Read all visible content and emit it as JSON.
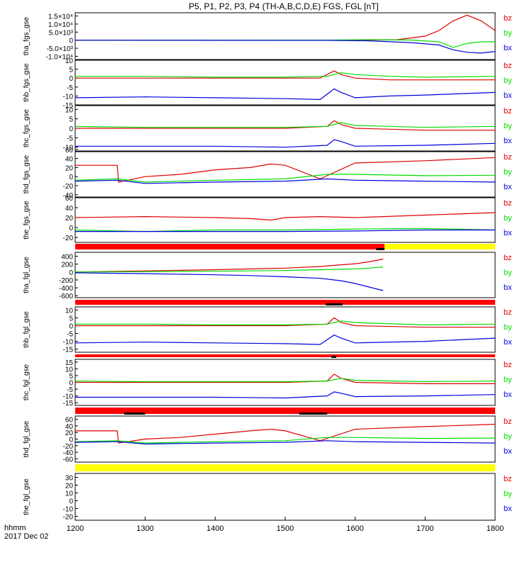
{
  "title": "P5, P1, P2, P3, P4 (TH-A,B,C,D,E) FGS, FGL [nT]",
  "footer": {
    "hhmm": "hhmm",
    "date": "2017 Dec 02"
  },
  "colors": {
    "bz": "#dd0000",
    "by": "#00dd00",
    "bx": "#0000dd",
    "flag_red": "#ff0000",
    "flag_yellow": "#ffff00",
    "flag_black": "#000000"
  },
  "chart_data": {
    "type": "line",
    "x_axis": {
      "range": [
        1200,
        1800
      ],
      "tick_labels": [
        "1200",
        "1300",
        "1400",
        "1500",
        "1600",
        "1700",
        "1800"
      ]
    },
    "legend": [
      "bz",
      "by",
      "bx"
    ],
    "panels": [
      {
        "id": "tha_fgs",
        "ylabel": "tha_fgs_gse",
        "ylim": [
          -12000,
          17000
        ],
        "tick_labels": [
          "1.5×10⁴",
          "1.0×10⁴",
          "5.0×10³",
          "0",
          "-5.0×10³",
          "-1.0×10⁴"
        ],
        "tick_values": [
          15000,
          10000,
          5000,
          0,
          -5000,
          -10000
        ],
        "series": [
          {
            "name": "bz",
            "x": [
              1200,
              1600,
              1660,
              1700,
              1720,
              1740,
              1760,
              1780,
              1800
            ],
            "y": [
              0,
              0,
              300,
              2500,
              6000,
              12000,
              15500,
              12000,
              6000
            ]
          },
          {
            "name": "by",
            "x": [
              1200,
              1560,
              1620,
              1680,
              1720,
              1740,
              1760,
              1780,
              1800
            ],
            "y": [
              0,
              50,
              300,
              100,
              -1000,
              -4500,
              -2000,
              -1000,
              -1000
            ]
          },
          {
            "name": "bx",
            "x": [
              1200,
              1560,
              1620,
              1680,
              1720,
              1740,
              1760,
              1780,
              1800
            ],
            "y": [
              0,
              -100,
              -400,
              -1500,
              -3000,
              -6000,
              -7500,
              -8000,
              -7000
            ]
          }
        ]
      },
      {
        "id": "thb_fgs",
        "ylabel": "thb_fgs_gse",
        "ylim": [
          -15,
          10
        ],
        "tick_labels": [
          "10",
          "5",
          "0",
          "-5",
          "-10",
          "-15"
        ],
        "tick_values": [
          10,
          5,
          0,
          -5,
          -10,
          -15
        ],
        "series": [
          {
            "name": "bz",
            "x": [
              1200,
              1300,
              1400,
              1500,
              1550,
              1570,
              1580,
              1600,
              1650,
              1700,
              1800
            ],
            "y": [
              0,
              0,
              0,
              0,
              0,
              4,
              2,
              0,
              -1,
              -1,
              -1
            ]
          },
          {
            "name": "by",
            "x": [
              1200,
              1300,
              1400,
              1500,
              1560,
              1580,
              1600,
              1650,
              1700,
              1800
            ],
            "y": [
              1,
              1,
              0.5,
              0.5,
              1,
              3,
              2,
              1,
              0.5,
              1
            ]
          },
          {
            "name": "bx",
            "x": [
              1200,
              1300,
              1400,
              1500,
              1550,
              1560,
              1570,
              1580,
              1600,
              1650,
              1700,
              1800
            ],
            "y": [
              -11,
              -10.5,
              -11,
              -11.5,
              -12,
              -9,
              -6,
              -8,
              -11,
              -10,
              -9.5,
              -8
            ]
          }
        ]
      },
      {
        "id": "thc_fgs",
        "ylabel": "thc_fgs_gse",
        "ylim": [
          -12,
          12
        ],
        "tick_labels": [
          "10",
          "5",
          "0",
          "-5",
          "-10"
        ],
        "tick_values": [
          10,
          5,
          0,
          -5,
          -10
        ],
        "series": [
          {
            "name": "bz",
            "x": [
              1200,
              1300,
              1400,
              1500,
              1560,
              1570,
              1580,
              1600,
              1700,
              1800
            ],
            "y": [
              0,
              0,
              0,
              0,
              1,
              4,
              2,
              0,
              -1,
              -1
            ]
          },
          {
            "name": "by",
            "x": [
              1200,
              1300,
              1400,
              1500,
              1560,
              1580,
              1600,
              1700,
              1800
            ],
            "y": [
              1,
              0.5,
              0.5,
              0.5,
              1,
              3,
              1.5,
              0.5,
              1
            ]
          },
          {
            "name": "bx",
            "x": [
              1200,
              1300,
              1400,
              1500,
              1560,
              1570,
              1580,
              1600,
              1700,
              1800
            ],
            "y": [
              -9.5,
              -9.5,
              -9.5,
              -10,
              -9,
              -6,
              -7,
              -9.5,
              -9,
              -8
            ]
          }
        ]
      },
      {
        "id": "thd_fgs",
        "ylabel": "thd_fgs_gse",
        "ylim": [
          -45,
          55
        ],
        "tick_labels": [
          "60",
          "40",
          "20",
          "0",
          "-20",
          "-40"
        ],
        "tick_values": [
          60,
          40,
          20,
          0,
          -20,
          -40
        ],
        "series": [
          {
            "name": "bz",
            "x": [
              1200,
              1260,
              1262,
              1300,
              1350,
              1400,
              1450,
              1480,
              1500,
              1550,
              1600,
              1700,
              1800
            ],
            "y": [
              25,
              25,
              -12,
              0,
              5,
              15,
              20,
              28,
              25,
              -5,
              30,
              35,
              42
            ]
          },
          {
            "name": "by",
            "x": [
              1200,
              1260,
              1300,
              1400,
              1500,
              1560,
              1600,
              1700,
              1800
            ],
            "y": [
              -8,
              -5,
              -12,
              -8,
              -5,
              5,
              5,
              2,
              3
            ]
          },
          {
            "name": "bx",
            "x": [
              1200,
              1260,
              1300,
              1400,
              1500,
              1560,
              1600,
              1700,
              1800
            ],
            "y": [
              -10,
              -8,
              -15,
              -12,
              -10,
              -5,
              -8,
              -10,
              -12
            ]
          }
        ]
      },
      {
        "id": "the_fgs",
        "ylabel": "the_fgs_gse",
        "ylim": [
          -30,
          60
        ],
        "tick_labels": [
          "60",
          "40",
          "20",
          "0",
          "-20"
        ],
        "tick_values": [
          60,
          40,
          20,
          0,
          -20
        ],
        "series": [
          {
            "name": "bz",
            "x": [
              1200,
              1300,
              1400,
              1450,
              1480,
              1500,
              1550,
              1600,
              1700,
              1800
            ],
            "y": [
              20,
              22,
              20,
              18,
              15,
              20,
              22,
              20,
              25,
              30
            ]
          },
          {
            "name": "by",
            "x": [
              1200,
              1300,
              1400,
              1500,
              1600,
              1700,
              1800
            ],
            "y": [
              -5,
              -8,
              -5,
              -5,
              -3,
              -2,
              -5
            ]
          },
          {
            "name": "bx",
            "x": [
              1200,
              1300,
              1400,
              1500,
              1600,
              1700,
              1800
            ],
            "y": [
              -8,
              -8,
              -8,
              -8,
              -7,
              -5,
              -5
            ]
          }
        ]
      },
      {
        "id": "tha_fgl",
        "ylabel": "tha_fgl_gse",
        "ylim": [
          -650,
          500
        ],
        "tick_labels": [
          "400",
          "200",
          "0",
          "-200",
          "-400",
          "-600"
        ],
        "tick_values": [
          400,
          200,
          0,
          -200,
          -400,
          -600
        ],
        "series": [
          {
            "name": "bz",
            "x": [
              1200,
              1300,
              1400,
              1500,
              1550,
              1600,
              1620,
              1640
            ],
            "y": [
              0,
              30,
              60,
              100,
              140,
              210,
              260,
              330
            ]
          },
          {
            "name": "by",
            "x": [
              1200,
              1300,
              1400,
              1500,
              1550,
              1600,
              1620,
              1640
            ],
            "y": [
              0,
              10,
              20,
              40,
              60,
              80,
              100,
              130
            ]
          },
          {
            "name": "bx",
            "x": [
              1200,
              1300,
              1400,
              1450,
              1500,
              1550,
              1580,
              1600,
              1620,
              1640
            ],
            "y": [
              -20,
              -40,
              -70,
              -90,
              -120,
              -160,
              -220,
              -290,
              -380,
              -470
            ]
          }
        ]
      },
      {
        "id": "thb_fgl",
        "ylabel": "thb_fgl_gse",
        "ylim": [
          -17,
          12
        ],
        "tick_labels": [
          "10",
          "5",
          "0",
          "-5",
          "-10",
          "-15"
        ],
        "tick_values": [
          10,
          5,
          0,
          -5,
          -10,
          -15
        ],
        "series": [
          {
            "name": "bz",
            "x": [
              1200,
              1300,
              1400,
              1500,
              1560,
              1570,
              1580,
              1600,
              1700,
              1800
            ],
            "y": [
              0,
              0,
              0,
              0,
              1,
              5,
              2,
              0,
              -1,
              -1
            ]
          },
          {
            "name": "by",
            "x": [
              1200,
              1300,
              1400,
              1500,
              1560,
              1580,
              1600,
              1700,
              1800
            ],
            "y": [
              1,
              1,
              0.5,
              0.5,
              1,
              3,
              2,
              0.5,
              1
            ]
          },
          {
            "name": "bx",
            "x": [
              1200,
              1300,
              1400,
              1500,
              1550,
              1560,
              1570,
              1580,
              1600,
              1700,
              1800
            ],
            "y": [
              -11,
              -10.5,
              -11,
              -11.5,
              -12,
              -9,
              -6,
              -8,
              -11,
              -10,
              -8
            ]
          }
        ]
      },
      {
        "id": "thc_fgl",
        "ylabel": "thc_fgl_gse",
        "ylim": [
          -17,
          17
        ],
        "tick_labels": [
          "15",
          "10",
          "5",
          "0",
          "-5",
          "-10",
          "-15"
        ],
        "tick_values": [
          15,
          10,
          5,
          0,
          -5,
          -10,
          -15
        ],
        "series": [
          {
            "name": "bz",
            "x": [
              1200,
              1300,
              1400,
              1500,
              1560,
              1570,
              1580,
              1600,
              1700,
              1800
            ],
            "y": [
              0,
              0,
              0,
              0,
              1,
              6,
              3,
              0,
              -1,
              -1
            ]
          },
          {
            "name": "by",
            "x": [
              1200,
              1300,
              1400,
              1500,
              1560,
              1580,
              1600,
              1700,
              1800
            ],
            "y": [
              1,
              0.5,
              0.5,
              0.5,
              1,
              3,
              1.5,
              0.5,
              1
            ]
          },
          {
            "name": "bx",
            "x": [
              1200,
              1300,
              1400,
              1500,
              1560,
              1570,
              1580,
              1600,
              1700,
              1800
            ],
            "y": [
              -11,
              -11,
              -11,
              -11.5,
              -10,
              -7,
              -8,
              -10.5,
              -10,
              -9
            ]
          }
        ]
      },
      {
        "id": "thd_fgl",
        "ylabel": "thd_fgl_gse",
        "ylim": [
          -70,
          70
        ],
        "tick_labels": [
          "60",
          "40",
          "20",
          "0",
          "-20",
          "-40",
          "-60"
        ],
        "tick_values": [
          60,
          40,
          20,
          0,
          -20,
          -40,
          -60
        ],
        "series": [
          {
            "name": "bz",
            "x": [
              1200,
              1260,
              1262,
              1300,
              1350,
              1400,
              1450,
              1480,
              1500,
              1550,
              1600,
              1700,
              1800
            ],
            "y": [
              25,
              25,
              -12,
              0,
              5,
              15,
              25,
              30,
              25,
              -5,
              30,
              38,
              45
            ]
          },
          {
            "name": "by",
            "x": [
              1200,
              1260,
              1300,
              1400,
              1500,
              1560,
              1600,
              1700,
              1800
            ],
            "y": [
              -8,
              -5,
              -12,
              -8,
              -5,
              5,
              5,
              2,
              3
            ]
          },
          {
            "name": "bx",
            "x": [
              1200,
              1260,
              1300,
              1400,
              1500,
              1560,
              1600,
              1700,
              1800
            ],
            "y": [
              -10,
              -8,
              -15,
              -12,
              -10,
              -5,
              -8,
              -10,
              -12
            ]
          }
        ]
      },
      {
        "id": "the_fgl",
        "ylabel": "the_fgl_gse",
        "ylim": [
          -25,
          35
        ],
        "tick_labels": [
          "30",
          "20",
          "10",
          "0",
          "-10",
          "-20"
        ],
        "tick_values": [
          30,
          20,
          10,
          0,
          -10,
          -20
        ],
        "series": []
      }
    ],
    "flag_bars": [
      {
        "after_panel": "the_fgs",
        "segments": [
          {
            "x0": 1200,
            "x1": 1642,
            "color": "flag_red"
          },
          {
            "x0": 1642,
            "x1": 1800,
            "color": "flag_yellow"
          }
        ],
        "marks": [
          [
            1630,
            1642
          ]
        ]
      },
      {
        "after_panel": "tha_fgl",
        "segments": [
          {
            "x0": 1200,
            "x1": 1800,
            "color": "flag_red"
          }
        ],
        "marks": [
          [
            1558,
            1582
          ]
        ]
      },
      {
        "after_panel": "thb_fgl",
        "segments": [
          {
            "x0": 1200,
            "x1": 1800,
            "color": "flag_red"
          }
        ],
        "marks": [
          [
            1566,
            1573
          ]
        ]
      },
      {
        "after_panel": "thc_fgl",
        "segments": [
          {
            "x0": 1200,
            "x1": 1800,
            "color": "flag_red"
          }
        ],
        "marks": [
          [
            1270,
            1300
          ],
          [
            1520,
            1560
          ]
        ]
      },
      {
        "after_panel": "thd_fgl",
        "segments": [
          {
            "x0": 1200,
            "x1": 1800,
            "color": "flag_yellow"
          }
        ],
        "marks": []
      }
    ]
  }
}
